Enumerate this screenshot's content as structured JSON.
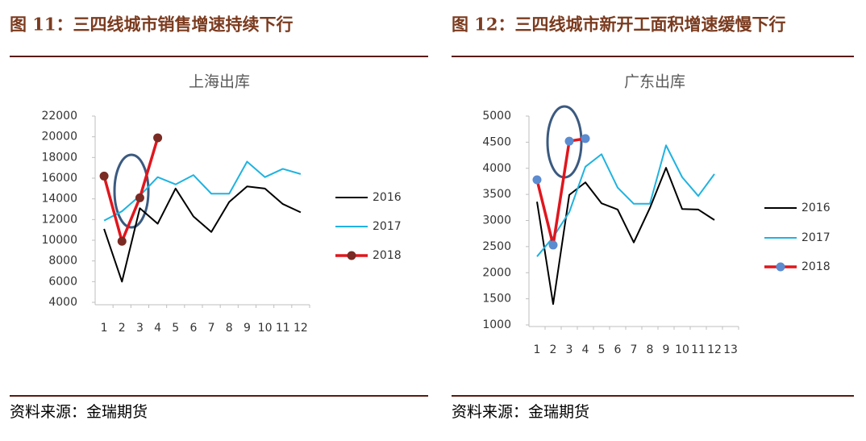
{
  "figures": [
    {
      "caption": "图 11：三四线城市销售增速持续下行",
      "source": "资料来源：金瑞期货"
    },
    {
      "caption": "图 12：三四线城市新开工面积增速缓慢下行",
      "source": "资料来源：金瑞期货"
    }
  ],
  "chart_data": [
    {
      "type": "line",
      "title": "上海出库",
      "categories": [
        "1",
        "2",
        "3",
        "4",
        "5",
        "6",
        "7",
        "8",
        "9",
        "10",
        "11",
        "12"
      ],
      "ylim": [
        4000,
        22000
      ],
      "yticks": [
        4000,
        6000,
        8000,
        10000,
        12000,
        14000,
        16000,
        18000,
        20000,
        22000
      ],
      "legend": "right",
      "series": [
        {
          "name": "2016",
          "color": "#000000",
          "values": [
            11100,
            6000,
            13100,
            11600,
            15000,
            12300,
            10800,
            13700,
            15200,
            15000,
            13500,
            12700
          ]
        },
        {
          "name": "2017",
          "color": "#1fb3e0",
          "values": [
            11900,
            12800,
            14300,
            16100,
            15400,
            16300,
            14500,
            14500,
            17600,
            16100,
            16900,
            16400
          ]
        },
        {
          "name": "2018",
          "color": "#e0161d",
          "marker_color": "#7b2a24",
          "values": [
            16200,
            9900,
            14100,
            19900,
            null,
            null,
            null,
            null,
            null,
            null,
            null,
            null
          ]
        }
      ]
    },
    {
      "type": "line",
      "title": "广东出库",
      "categories": [
        "1",
        "2",
        "3",
        "4",
        "5",
        "6",
        "7",
        "8",
        "9",
        "10",
        "11",
        "12",
        "13"
      ],
      "ylim": [
        1000,
        5000
      ],
      "yticks": [
        1000,
        1500,
        2000,
        2500,
        3000,
        3500,
        4000,
        4500,
        5000
      ],
      "legend": "right",
      "series": [
        {
          "name": "2016",
          "color": "#000000",
          "values": [
            3360,
            1400,
            3490,
            3730,
            3330,
            3210,
            2580,
            3240,
            4010,
            3220,
            3210,
            3010,
            null
          ]
        },
        {
          "name": "2017",
          "color": "#1fb3e0",
          "values": [
            2310,
            2680,
            3160,
            4030,
            4270,
            3630,
            3320,
            3320,
            4440,
            3830,
            3470,
            3890,
            null
          ]
        },
        {
          "name": "2018",
          "color": "#e0161d",
          "marker_color": "#5b8bd0",
          "values": [
            3780,
            2530,
            4520,
            4570,
            null,
            null,
            null,
            null,
            null,
            null,
            null,
            null,
            null
          ]
        }
      ]
    }
  ]
}
